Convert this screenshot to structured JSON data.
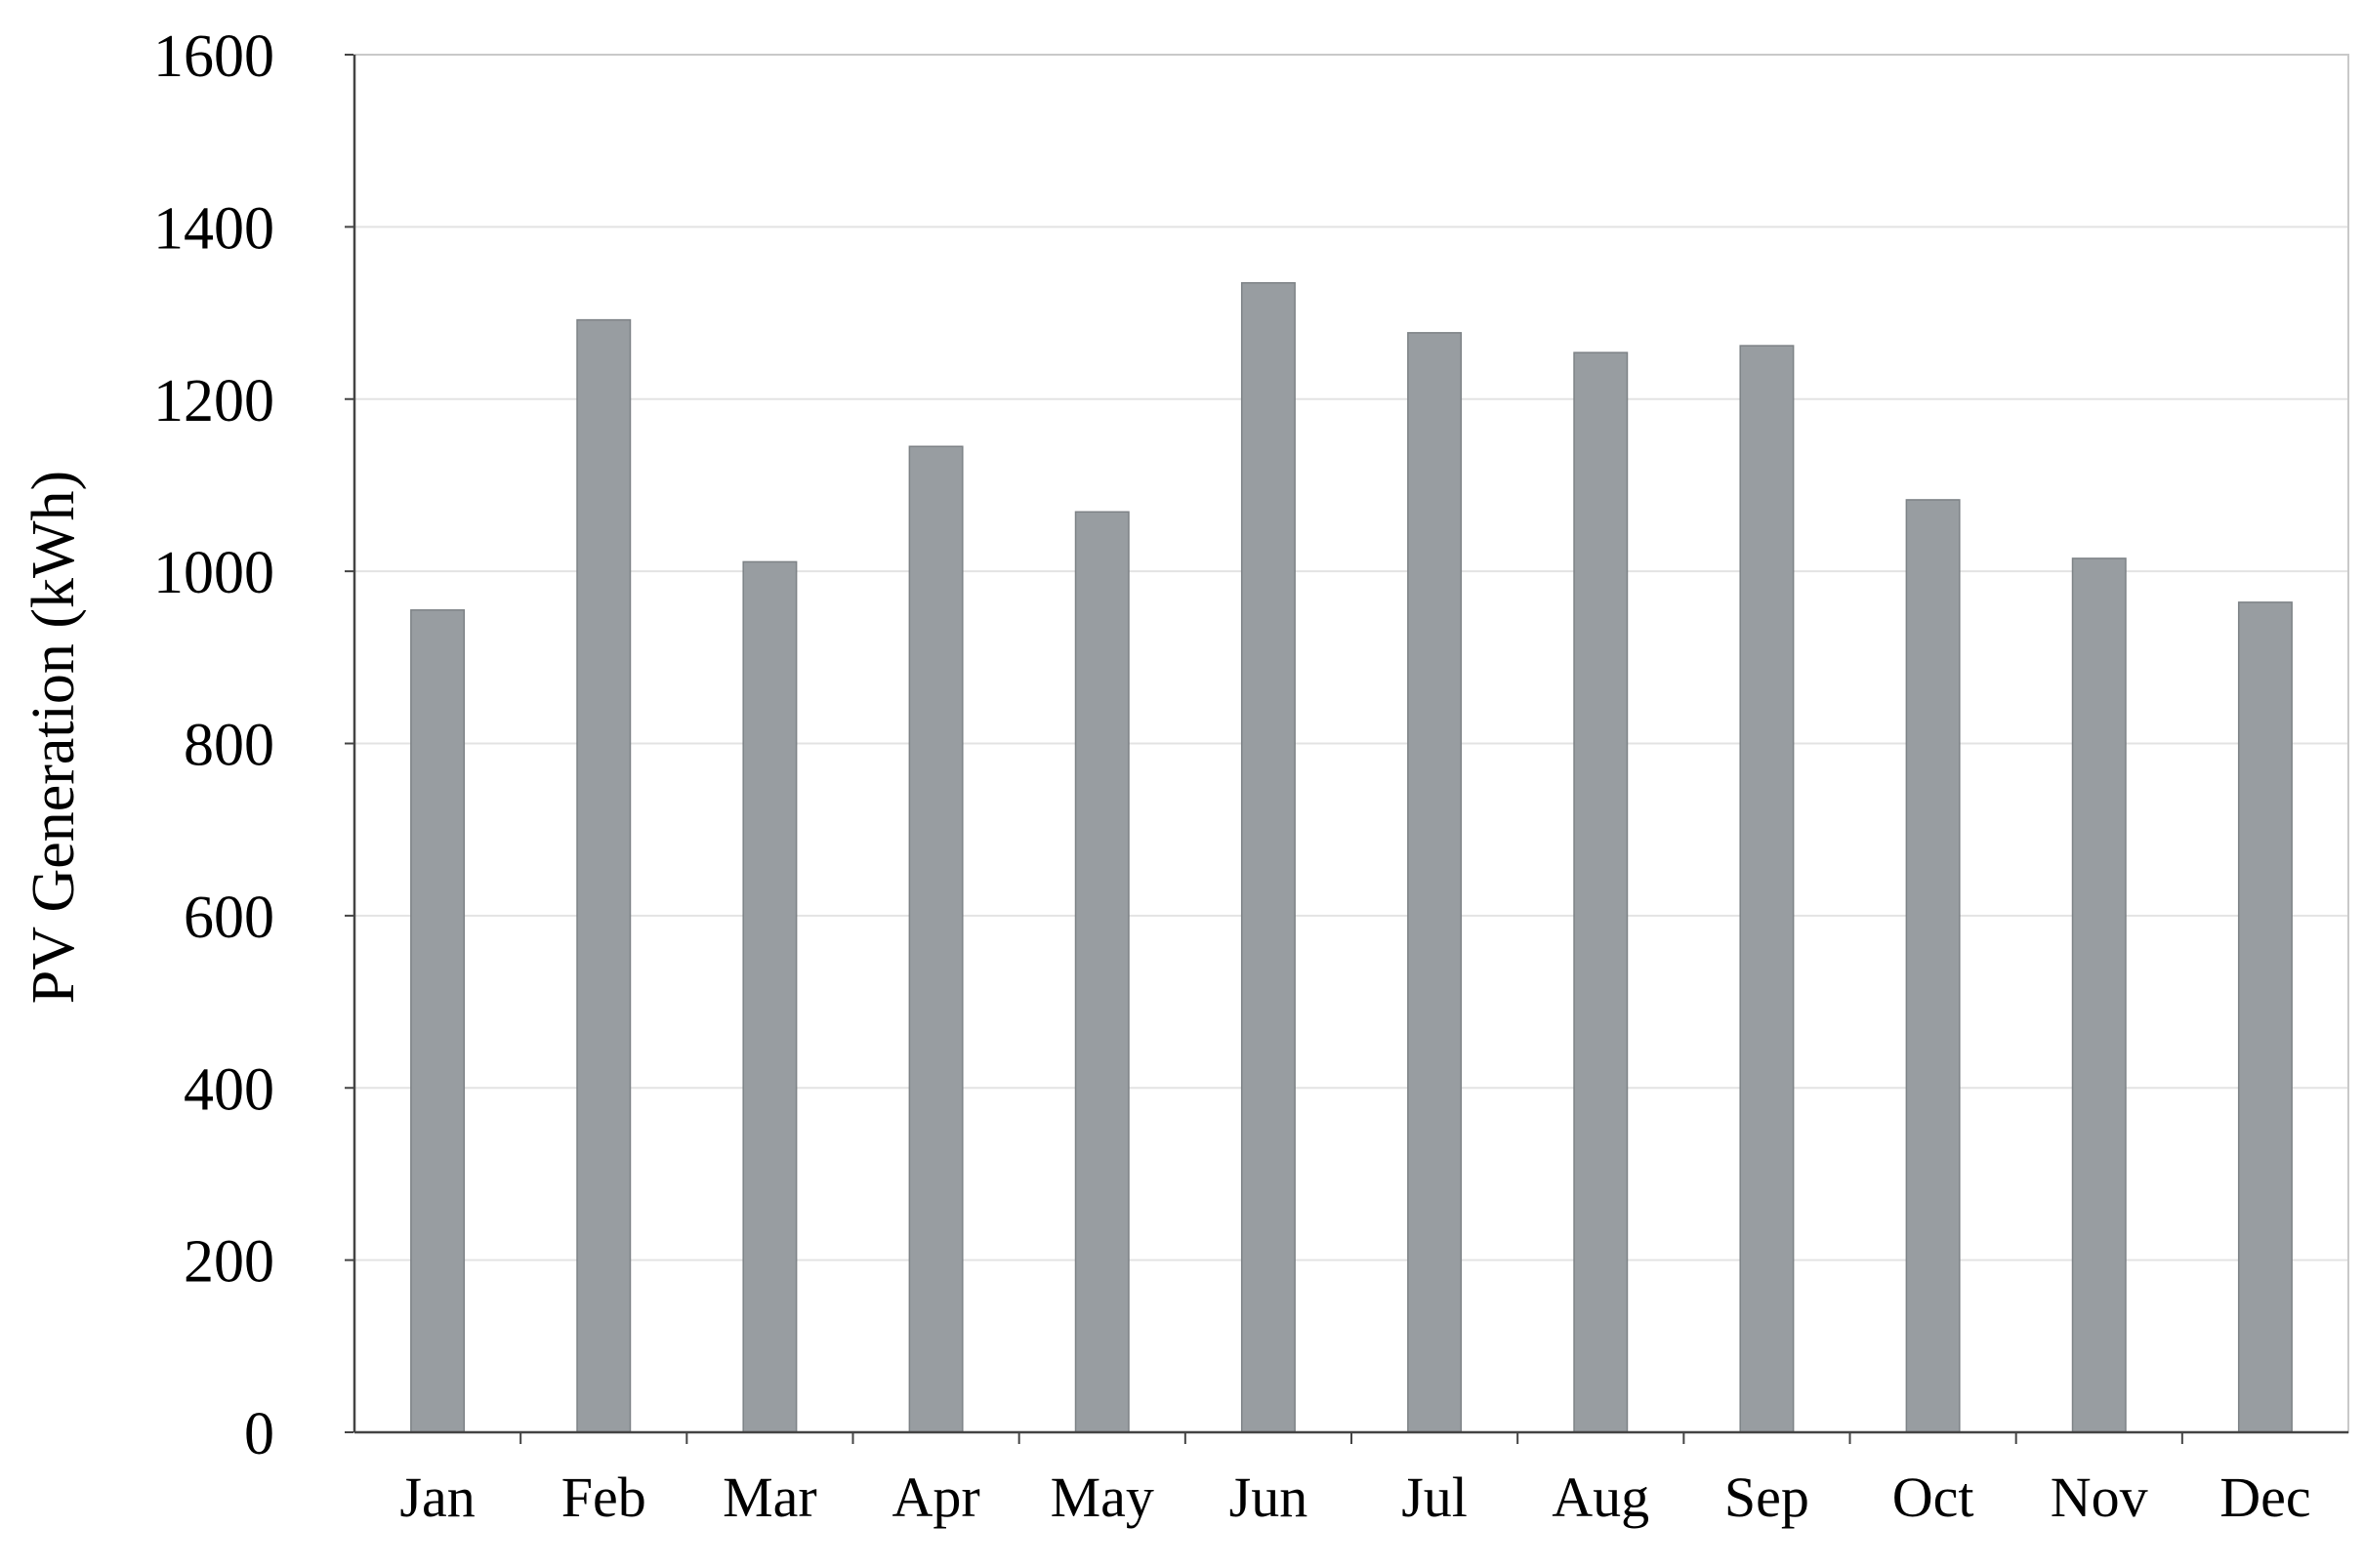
{
  "chart_data": {
    "type": "bar",
    "title": "",
    "xlabel": "",
    "ylabel": "PV Generation (kWh)",
    "categories": [
      "Jan",
      "Feb",
      "Mar",
      "Apr",
      "May",
      "Jun",
      "Jul",
      "Aug",
      "Sep",
      "Oct",
      "Nov",
      "Dec"
    ],
    "values": [
      955,
      1292,
      1011,
      1145,
      1069,
      1335,
      1277,
      1254,
      1262,
      1083,
      1015,
      964
    ],
    "ylim": [
      0,
      1600
    ],
    "yticks": [
      0,
      200,
      400,
      600,
      800,
      1000,
      1200,
      1400,
      1600
    ],
    "grid": true,
    "legend": "none",
    "colors": {
      "bar_fill": "#989da1",
      "bar_edge": "#7d8286",
      "grid": "#e3e3e3",
      "axis": "#444444"
    }
  }
}
